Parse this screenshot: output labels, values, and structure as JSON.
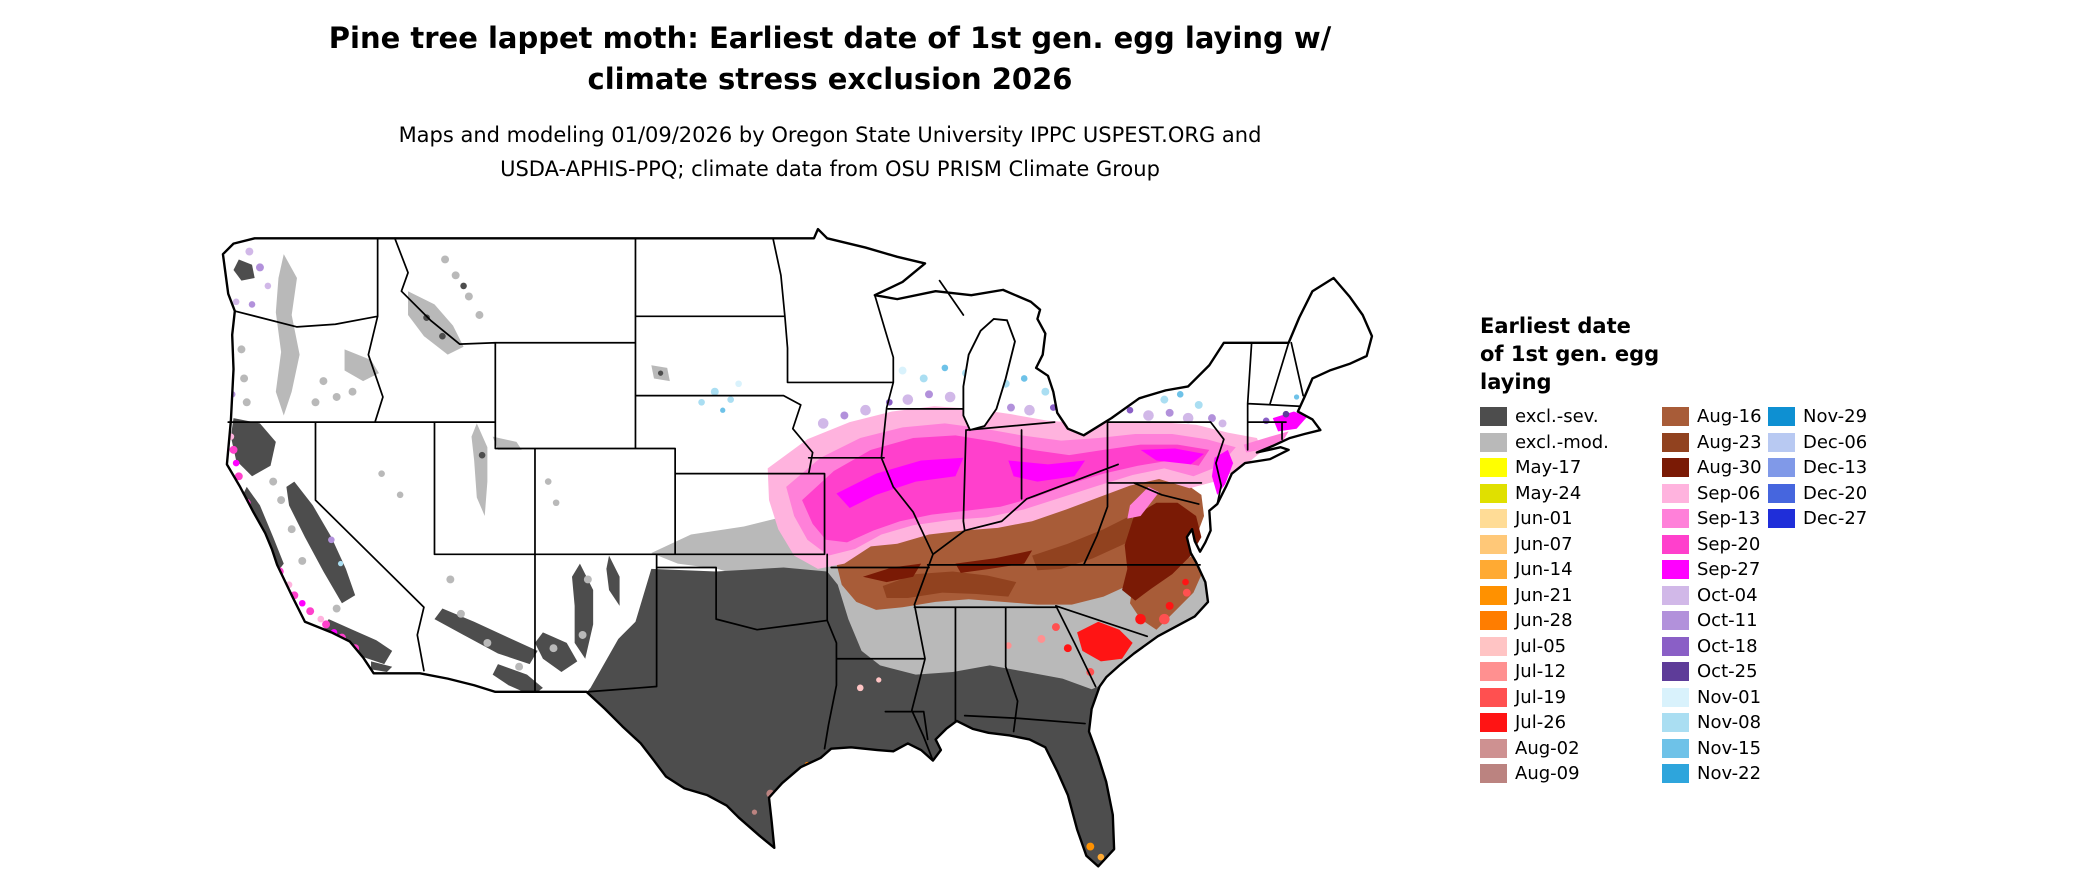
{
  "title": {
    "line1": "Pine tree lappet moth: Earliest date of 1st gen. egg laying w/",
    "line2": "climate stress exclusion 2026"
  },
  "subtitle": {
    "line1": "Maps and modeling 01/09/2026 by Oregon State University IPPC USPEST.ORG and",
    "line2": "USDA-APHIS-PPQ; climate data from OSU PRISM Climate Group"
  },
  "legend": {
    "title_lines": [
      "Earliest date",
      "of 1st gen. egg",
      "laying"
    ],
    "columns": [
      [
        {
          "label": "excl.-sev.",
          "key": "excl_sev"
        },
        {
          "label": "excl.-mod.",
          "key": "excl_mod"
        },
        {
          "label": "May-17",
          "key": "may17"
        },
        {
          "label": "May-24",
          "key": "may24"
        },
        {
          "label": "Jun-01",
          "key": "jun01"
        },
        {
          "label": "Jun-07",
          "key": "jun07"
        },
        {
          "label": "Jun-14",
          "key": "jun14"
        },
        {
          "label": "Jun-21",
          "key": "jun21"
        },
        {
          "label": "Jun-28",
          "key": "jun28"
        },
        {
          "label": "Jul-05",
          "key": "jul05"
        },
        {
          "label": "Jul-12",
          "key": "jul12"
        },
        {
          "label": "Jul-19",
          "key": "jul19"
        },
        {
          "label": "Jul-26",
          "key": "jul26"
        },
        {
          "label": "Aug-02",
          "key": "aug02"
        },
        {
          "label": "Aug-09",
          "key": "aug09"
        }
      ],
      [
        {
          "label": "Aug-16",
          "key": "aug16"
        },
        {
          "label": "Aug-23",
          "key": "aug23"
        },
        {
          "label": "Aug-30",
          "key": "aug30"
        },
        {
          "label": "Sep-06",
          "key": "sep06"
        },
        {
          "label": "Sep-13",
          "key": "sep13"
        },
        {
          "label": "Sep-20",
          "key": "sep20"
        },
        {
          "label": "Sep-27",
          "key": "sep27"
        },
        {
          "label": "Oct-04",
          "key": "oct04"
        },
        {
          "label": "Oct-11",
          "key": "oct11"
        },
        {
          "label": "Oct-18",
          "key": "oct18"
        },
        {
          "label": "Oct-25",
          "key": "oct25"
        },
        {
          "label": "Nov-01",
          "key": "nov01"
        },
        {
          "label": "Nov-08",
          "key": "nov08"
        },
        {
          "label": "Nov-15",
          "key": "nov15"
        },
        {
          "label": "Nov-22",
          "key": "nov22"
        }
      ],
      [
        {
          "label": "Nov-29",
          "key": "nov29"
        },
        {
          "label": "Dec-06",
          "key": "dec06"
        },
        {
          "label": "Dec-13",
          "key": "dec13"
        },
        {
          "label": "Dec-20",
          "key": "dec20"
        },
        {
          "label": "Dec-27",
          "key": "dec27"
        }
      ]
    ]
  },
  "palette": {
    "excl_sev": "#4D4D4D",
    "excl_mod": "#B9B9B9",
    "may17": "#FFFF00",
    "may24": "#E0E000",
    "jun01": "#FFDC96",
    "jun07": "#FFC878",
    "jun14": "#FFAA33",
    "jun21": "#FF9100",
    "jun28": "#FF7D00",
    "jul05": "#FFC4C4",
    "jul12": "#FF9090",
    "jul19": "#FF5050",
    "jul26": "#FF1414",
    "aug02": "#CE9191",
    "aug09": "#BB8380",
    "aug16": "#A85C38",
    "aug23": "#91421F",
    "aug30": "#7A1A05",
    "sep06": "#FFB3DE",
    "sep13": "#FF80D9",
    "sep20": "#FF40CC",
    "sep27": "#FF00FF",
    "oct04": "#D1B8E8",
    "oct11": "#B291DB",
    "oct18": "#8A5FC6",
    "oct25": "#5E3C99",
    "nov01": "#D9F2FC",
    "nov08": "#AADEF2",
    "nov15": "#6EC2E8",
    "nov22": "#2EA5DC",
    "nov29": "#0E90D2",
    "dec06": "#B8C9F2",
    "dec13": "#8099E8",
    "dec20": "#4666DE",
    "dec27": "#1F2ED9",
    "white": "#FFFFFF",
    "border": "#000000"
  },
  "chart_data": {
    "type": "heatmap",
    "title": "Pine tree lappet moth: Earliest date of 1st gen. egg laying w/ climate stress exclusion 2026",
    "legend_title": "Earliest date of 1st gen. egg laying",
    "legend_position": "right",
    "categories": [
      "excl.-sev.",
      "excl.-mod.",
      "May-17",
      "May-24",
      "Jun-01",
      "Jun-07",
      "Jun-14",
      "Jun-21",
      "Jun-28",
      "Jul-05",
      "Jul-12",
      "Jul-19",
      "Jul-26",
      "Aug-02",
      "Aug-09",
      "Aug-16",
      "Aug-23",
      "Aug-30",
      "Sep-06",
      "Sep-13",
      "Sep-20",
      "Sep-27",
      "Oct-04",
      "Oct-11",
      "Oct-18",
      "Oct-25",
      "Nov-01",
      "Nov-08",
      "Nov-15",
      "Nov-22",
      "Nov-29",
      "Dec-06",
      "Dec-13",
      "Dec-20",
      "Dec-27"
    ],
    "colors": [
      "#4D4D4D",
      "#B9B9B9",
      "#FFFF00",
      "#E0E000",
      "#FFDC96",
      "#FFC878",
      "#FFAA33",
      "#FF9100",
      "#FF7D00",
      "#FFC4C4",
      "#FF9090",
      "#FF5050",
      "#FF1414",
      "#CE9191",
      "#BB8380",
      "#A85C38",
      "#91421F",
      "#7A1A05",
      "#FFB3DE",
      "#FF80D9",
      "#FF40CC",
      "#FF00FF",
      "#D1B8E8",
      "#B291DB",
      "#8A5FC6",
      "#5E3C99",
      "#D9F2FC",
      "#AADEF2",
      "#6EC2E8",
      "#2EA5DC",
      "#0E90D2",
      "#B8C9F2",
      "#8099E8",
      "#4666DE",
      "#1F2ED9"
    ],
    "region_pattern_notes": [
      "Dark gray (excl.-sev.) covers Texas, Oklahoma, the Gulf states, Georgia, Florida and western mountain ranges (Sierra Nevada, CA coast ranges, AZ/NM highlands)",
      "Light gray (excl.-mod.) band across Arkansas, Tennessee, northern Gulf states, South Carolina, eastern Kansas and Pacific Northwest mountains",
      "Brown band (Aug-16 to Aug-30) across Missouri, the Ohio Valley, Kentucky and east through Virginia / coastal North Carolina",
      "Pink-magenta band (Sep-06 to Sep-27) across Iowa, northern Illinois/Indiana/Ohio, Pennsylvania, New Jersey and southern New England; magenta speckles along the California coast",
      "Purple (Oct) and light blue (Nov) speckles along the northern edge of the pink band",
      "Red (Jul-19/Jul-26) patches in coastal South Carolina; orange specks in south Florida",
      "Northern plains, interior Rockies and northern New England mostly white"
    ]
  }
}
